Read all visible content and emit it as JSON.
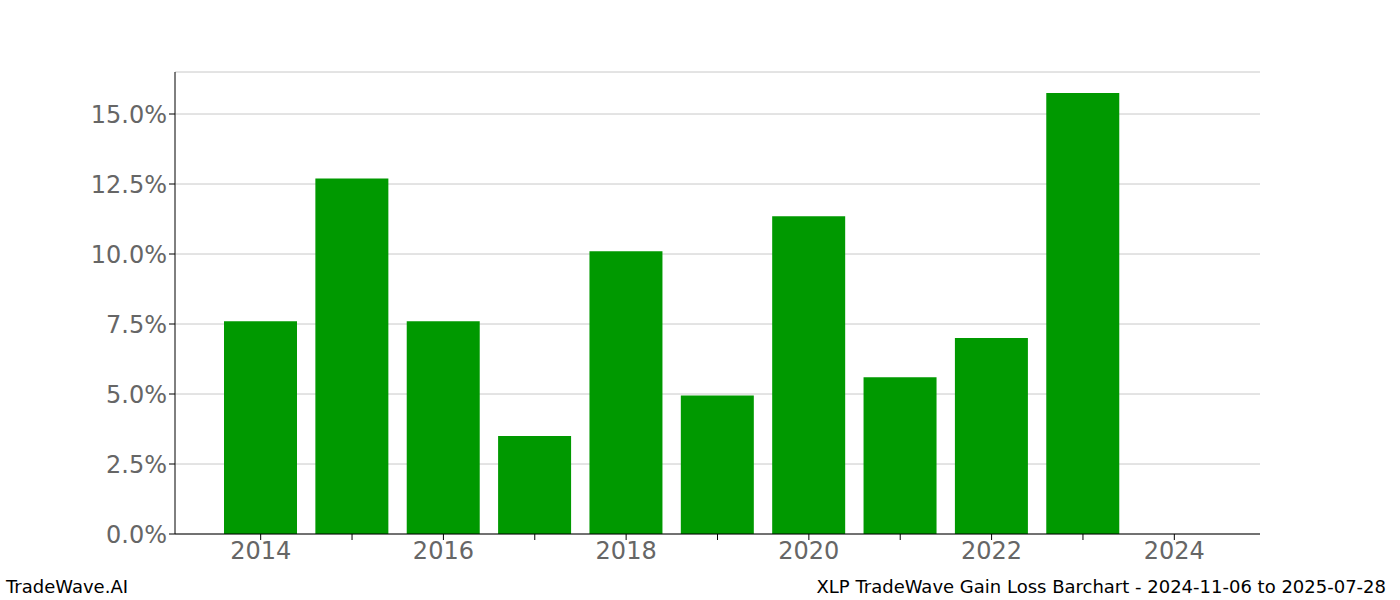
{
  "chart_data": {
    "type": "bar",
    "title": "XLP TradeWave Gain Loss Barchart - 2024-11-06 to 2025-07-28",
    "annotations": [
      "TradeWave.AI"
    ],
    "categories": [
      "2014",
      null,
      "2016",
      null,
      "2018",
      null,
      "2020",
      null,
      "2022",
      null,
      "2024"
    ],
    "values": [
      7.6,
      12.7,
      7.6,
      3.5,
      10.1,
      4.95,
      11.35,
      5.6,
      7.0,
      15.75,
      null
    ],
    "color": "#009900",
    "ylim": [
      0,
      16.5
    ],
    "yticks": [
      {
        "value": 0,
        "label": "0.0%"
      },
      {
        "value": 2.5,
        "label": "2.5%"
      },
      {
        "value": 5,
        "label": "5.0%"
      },
      {
        "value": 7.5,
        "label": "7.5%"
      },
      {
        "value": 10,
        "label": "10.0%"
      },
      {
        "value": 12.5,
        "label": "12.5%"
      },
      {
        "value": 15,
        "label": "15.0%"
      }
    ],
    "grid": true
  }
}
